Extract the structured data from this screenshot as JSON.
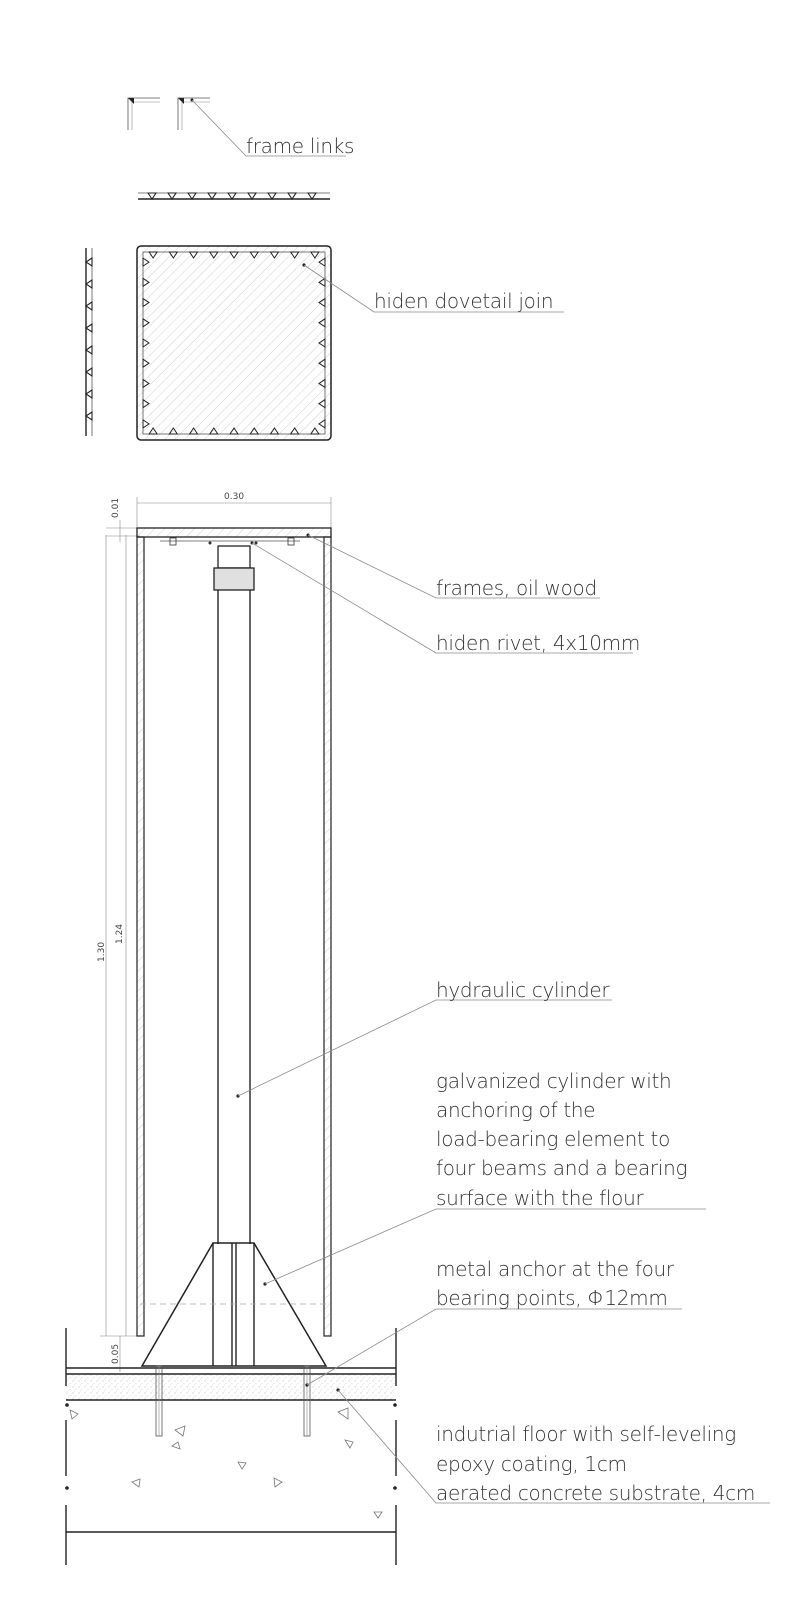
{
  "labels": {
    "frame_links": "frame links",
    "dovetail": "hiden dovetail join",
    "frames": "frames, oil wood",
    "rivet": "hiden rivet, 4x10mm",
    "hydraulic": "hydraulic cylinder",
    "galvanized": [
      "galvanized cylinder with",
      "anchoring of the",
      "load-bearing element to",
      "four beams and a bearing",
      "surface with the flour"
    ],
    "anchor": [
      "metal anchor at the four",
      "bearing points, Φ12mm"
    ],
    "floor": [
      "indutrial floor with self-leveling",
      "epoxy coating, 1cm",
      "aerated concrete substrate, 4cm"
    ]
  },
  "dimensions": {
    "width": "0.30",
    "top": "0.01",
    "total_height": "1.30",
    "inner_height": "1.24",
    "base": "0.05"
  }
}
